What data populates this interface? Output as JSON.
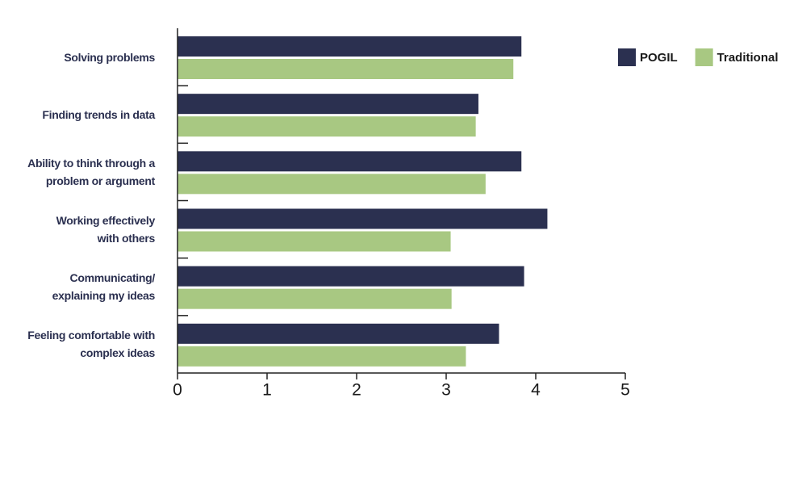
{
  "chart_data": {
    "type": "barh",
    "categories": [
      "Solving problems",
      "Finding trends in data",
      "Ability to think through a\nproblem or argument",
      "Working effectively\nwith others",
      "Communicating/\nexplaining my ideas",
      "Feeling comfortable with\ncomplex ideas"
    ],
    "series": [
      {
        "name": "POGIL",
        "color": "#2b3050",
        "values": [
          3.84,
          3.36,
          3.84,
          4.13,
          3.87,
          3.59
        ]
      },
      {
        "name": "Traditional",
        "color": "#a8c882",
        "values": [
          3.75,
          3.33,
          3.44,
          3.05,
          3.06,
          3.22
        ]
      }
    ],
    "xlim": [
      0,
      5
    ],
    "xticks": [
      0,
      1,
      2,
      3,
      4,
      5
    ],
    "legend": "upper right"
  }
}
